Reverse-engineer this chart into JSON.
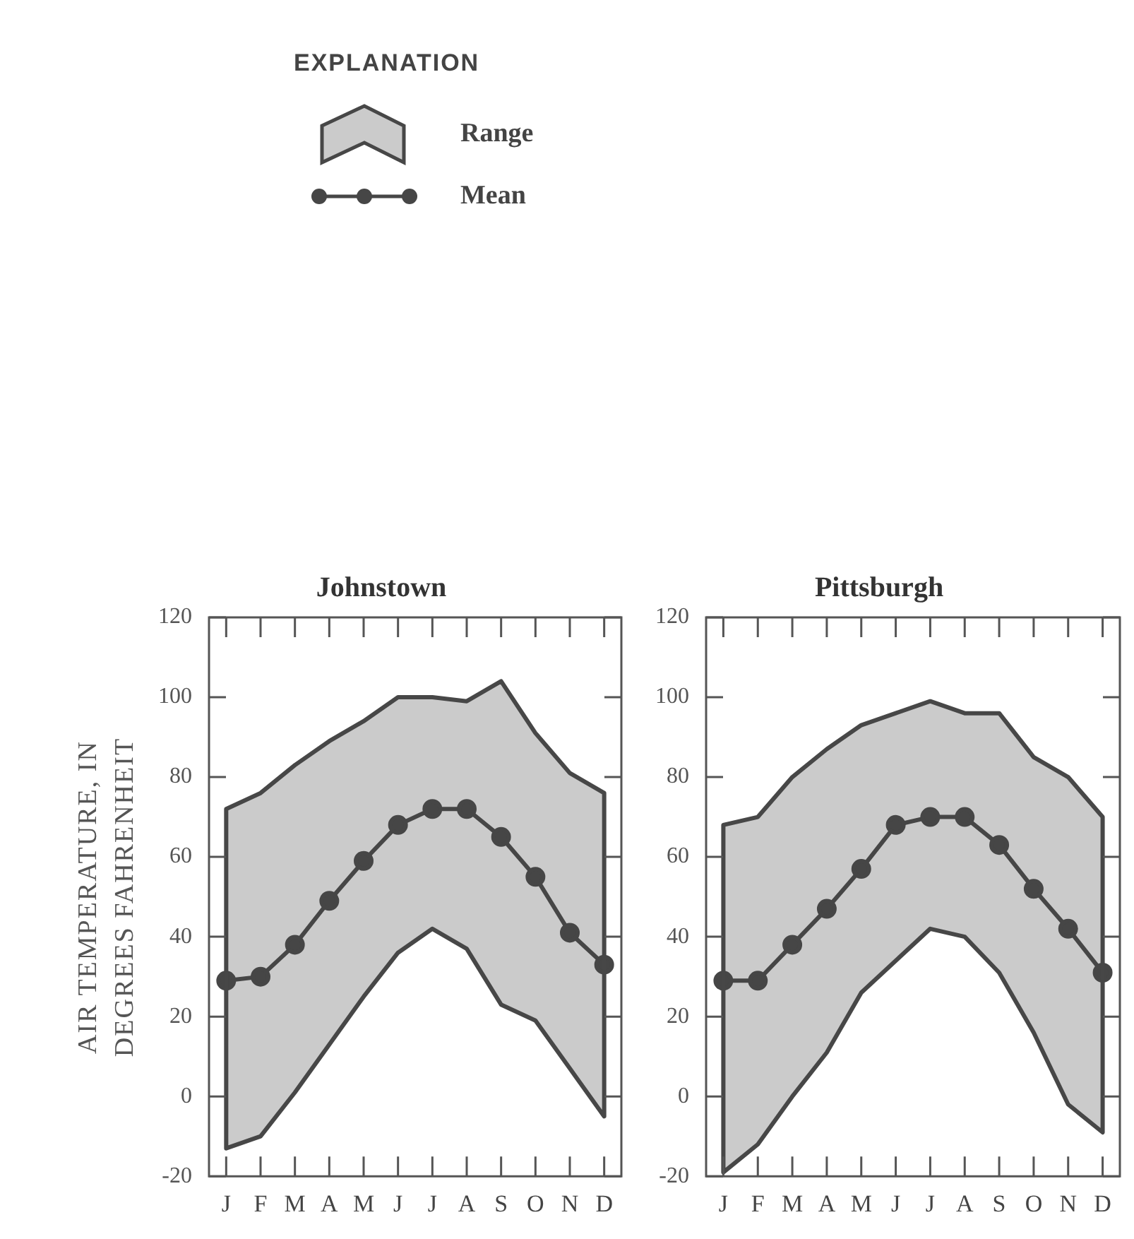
{
  "chart_data": [
    {
      "type": "line",
      "title": "Johnstown",
      "ylabel": "AIR TEMPERATURE, IN DEGREES FAHRENHEIT",
      "legend_title": "EXPLANATION",
      "legend": "top",
      "annotations": [
        "Range"
      ],
      "categories": [
        "J",
        "F",
        "M",
        "A",
        "M",
        "J",
        "J",
        "A",
        "S",
        "O",
        "N",
        "D"
      ],
      "ylim": [
        -20,
        120
      ],
      "yticks": [
        -20,
        0,
        20,
        40,
        60,
        80,
        100,
        120
      ],
      "grid": false,
      "marker": "circle",
      "series": [
        {
          "name": "Mean",
          "color": "#464646",
          "values": [
            29,
            30,
            38,
            49,
            59,
            68,
            72,
            72,
            65,
            55,
            41,
            33
          ],
          "lower": [
            -13,
            -10,
            1,
            13,
            25,
            36,
            42,
            37,
            23,
            19,
            7,
            -5
          ],
          "upper": [
            72,
            76,
            83,
            89,
            94,
            100,
            100,
            99,
            104,
            91,
            81,
            76
          ]
        }
      ]
    },
    {
      "type": "line",
      "title": "Pittsburgh",
      "categories": [
        "J",
        "F",
        "M",
        "A",
        "M",
        "J",
        "J",
        "A",
        "S",
        "O",
        "N",
        "D"
      ],
      "ylim": [
        -20,
        120
      ],
      "yticks": [
        -20,
        0,
        20,
        40,
        60,
        80,
        100,
        120
      ],
      "grid": false,
      "marker": "circle",
      "series": [
        {
          "color": "#464646",
          "values": [
            29,
            29,
            38,
            47,
            57,
            68,
            70,
            70,
            63,
            52,
            42,
            31
          ],
          "lower": [
            -19,
            -12,
            0,
            11,
            26,
            34,
            42,
            40,
            31,
            16,
            -2,
            -9
          ],
          "upper": [
            68,
            70,
            80,
            87,
            93,
            96,
            99,
            96,
            96,
            85,
            80,
            70
          ]
        }
      ]
    }
  ]
}
